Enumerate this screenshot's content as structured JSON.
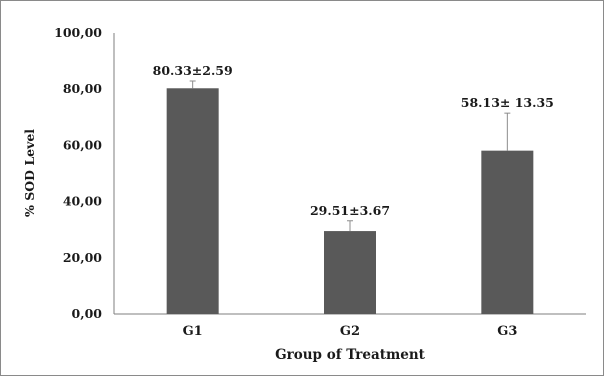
{
  "chart_data": {
    "type": "bar",
    "title": "",
    "xlabel": "Group of Treatment",
    "ylabel": "% SOD Level",
    "ylim": [
      0,
      100
    ],
    "yticks": [
      "0,00",
      "20,00",
      "40,00",
      "60,00",
      "80,00",
      "100,00"
    ],
    "categories": [
      "G1",
      "G2",
      "G3"
    ],
    "values": [
      80.33,
      29.51,
      58.13
    ],
    "errors": [
      2.59,
      3.67,
      13.35
    ],
    "data_labels": [
      "80.33±2.59",
      "29.51±3.67",
      "58.13± 13.35"
    ],
    "bar_color": "#595959",
    "grid": false,
    "legend": "none"
  }
}
